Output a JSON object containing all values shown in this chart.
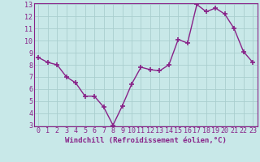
{
  "x": [
    0,
    1,
    2,
    3,
    4,
    5,
    6,
    7,
    8,
    9,
    10,
    11,
    12,
    13,
    14,
    15,
    16,
    17,
    18,
    19,
    20,
    21,
    22,
    23
  ],
  "y": [
    8.6,
    8.2,
    8.0,
    7.0,
    6.5,
    5.4,
    5.4,
    4.5,
    3.0,
    4.6,
    6.4,
    7.8,
    7.6,
    7.5,
    8.0,
    10.1,
    9.8,
    13.0,
    12.4,
    12.7,
    12.2,
    11.0,
    9.1,
    8.2
  ],
  "line_color": "#882288",
  "marker": "+",
  "marker_size": 4,
  "xlabel": "Windchill (Refroidissement éolien,°C)",
  "ylim": [
    3,
    13
  ],
  "xlim": [
    -0.5,
    23.5
  ],
  "yticks": [
    3,
    4,
    5,
    6,
    7,
    8,
    9,
    10,
    11,
    12,
    13
  ],
  "xticks": [
    0,
    1,
    2,
    3,
    4,
    5,
    6,
    7,
    8,
    9,
    10,
    11,
    12,
    13,
    14,
    15,
    16,
    17,
    18,
    19,
    20,
    21,
    22,
    23
  ],
  "grid_color": "#aacece",
  "bg_color": "#c8e8e8",
  "xlabel_fontsize": 6.5,
  "tick_fontsize": 6.0,
  "line_width": 1.0,
  "marker_color": "#882288"
}
